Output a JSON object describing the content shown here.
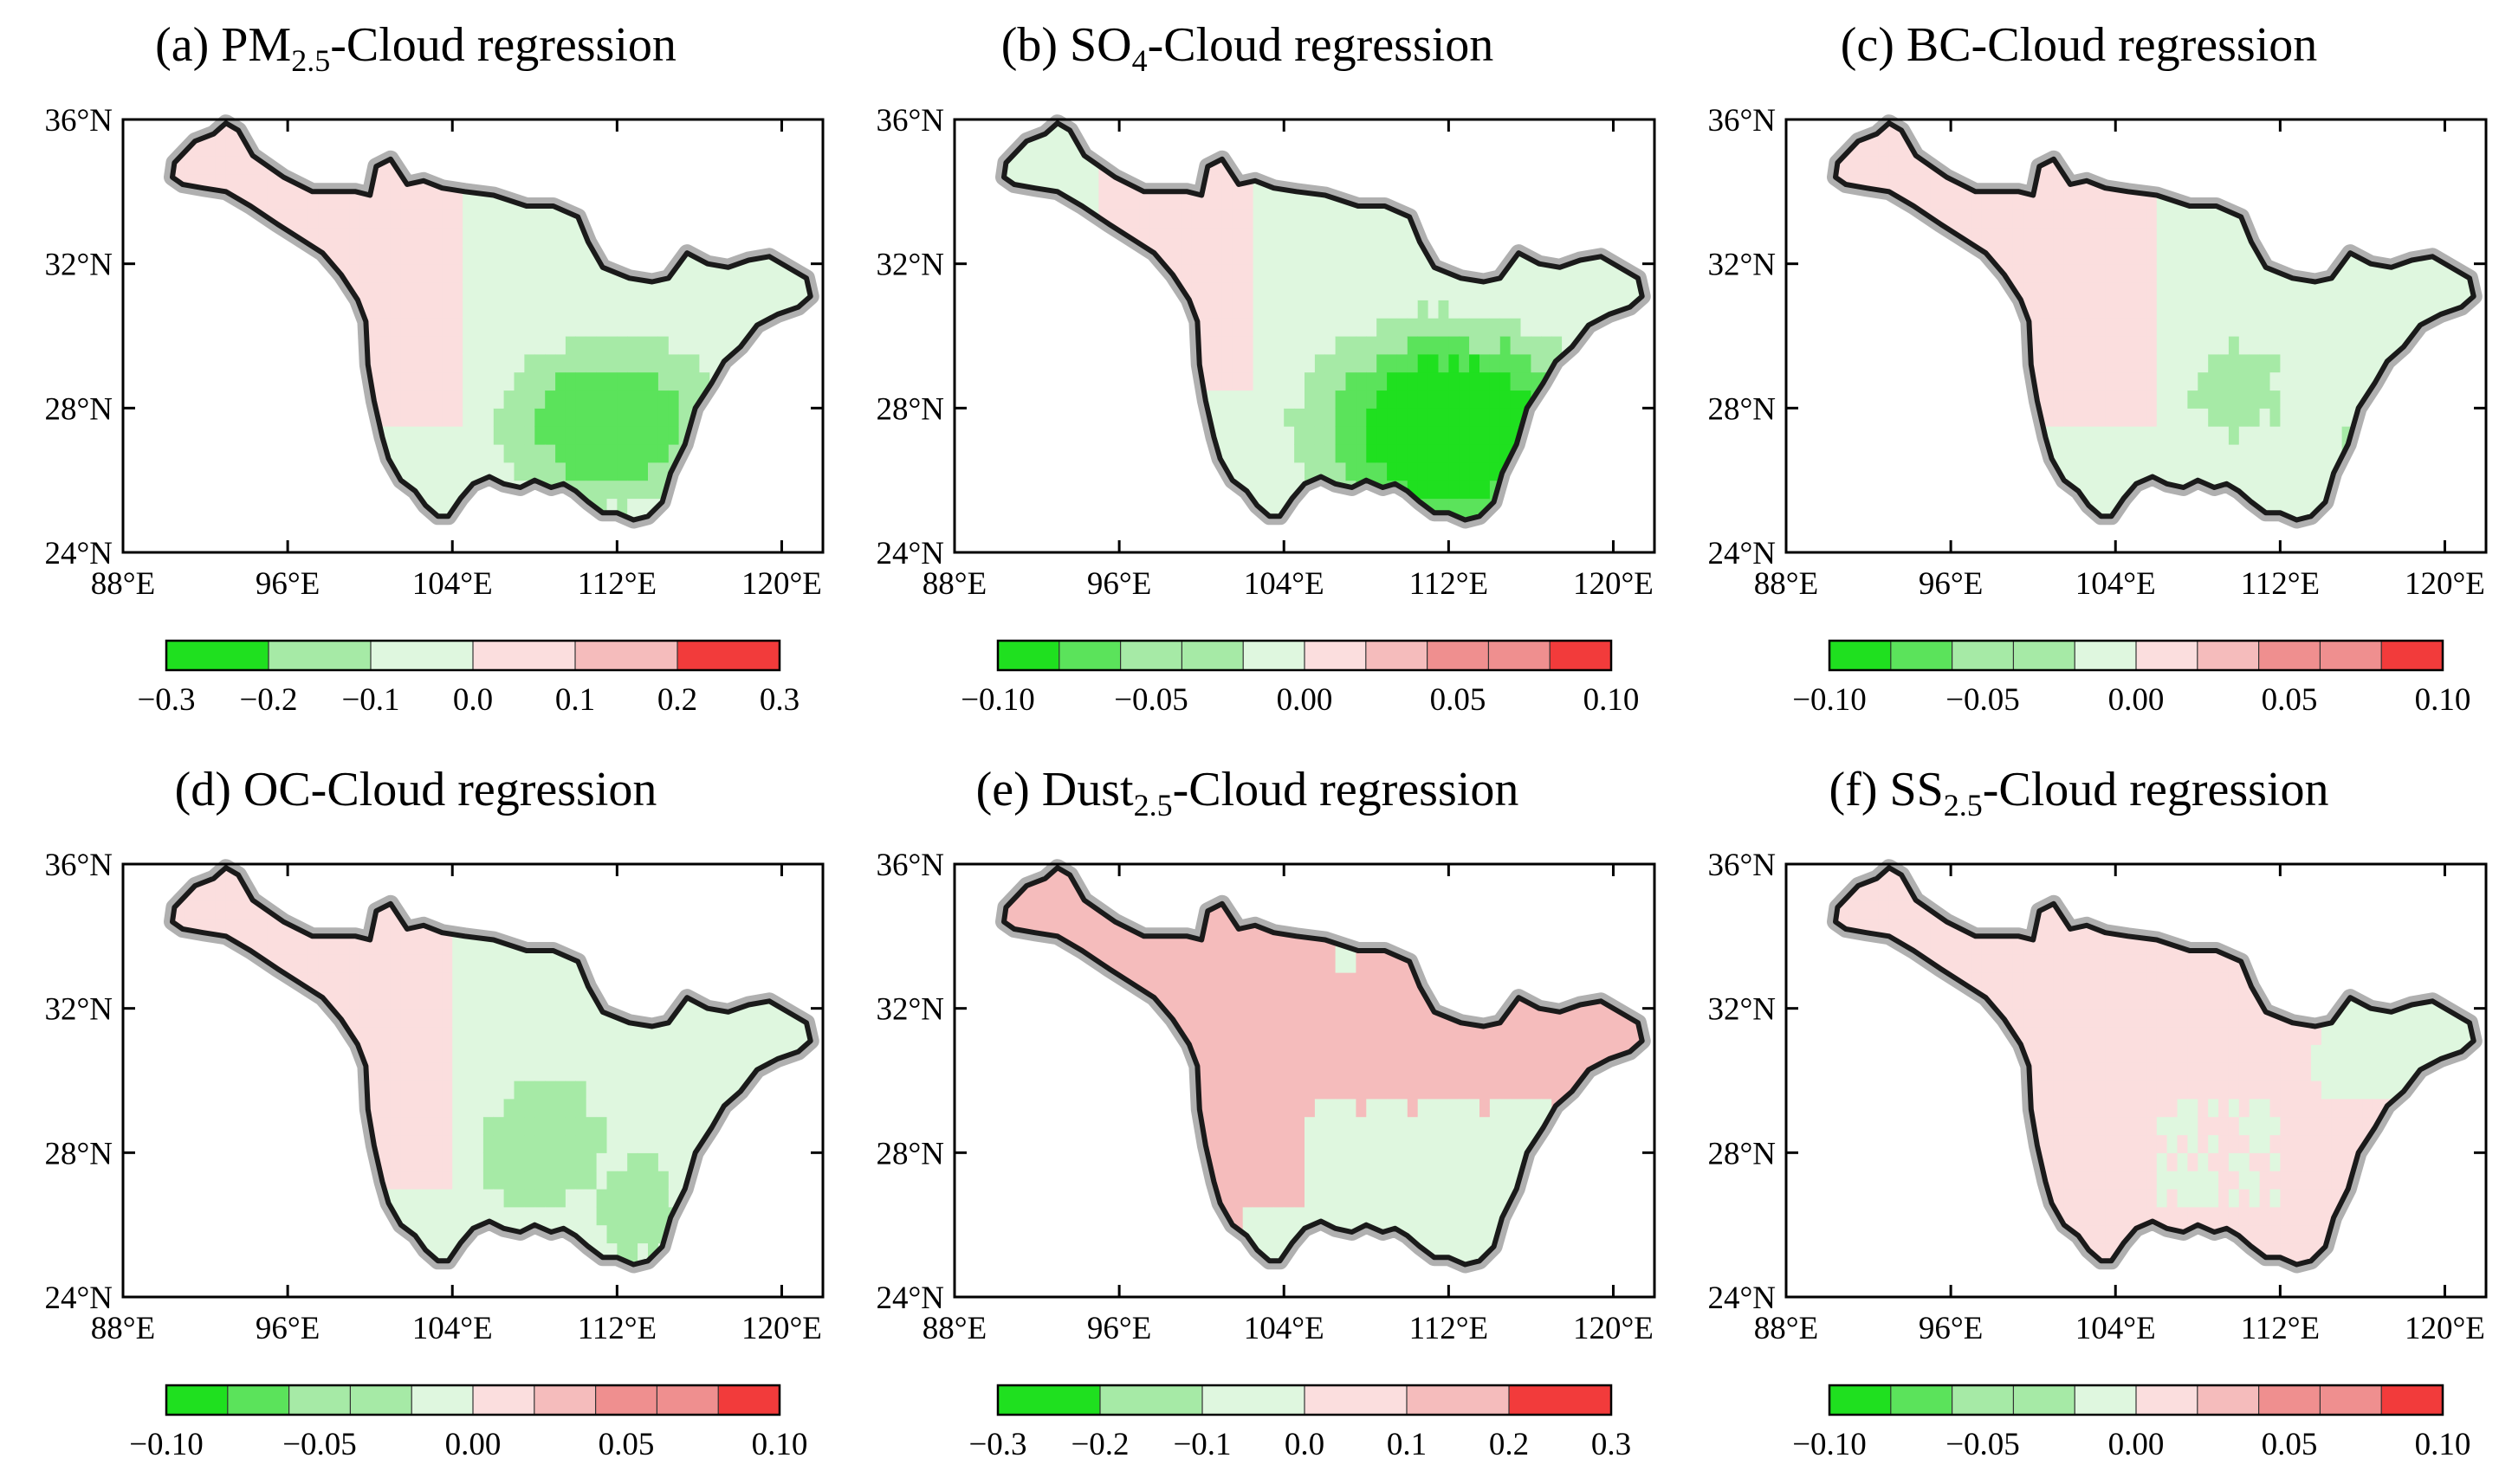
{
  "figure": {
    "panels": [
      {
        "id": "a",
        "title": {
          "prefix": "(a) PM",
          "sub": "2.5",
          "suffix": "-Cloud regression"
        },
        "colorbar": {
          "levels": [
            "-0.3",
            "-0.2",
            "-0.1",
            "0.0",
            "0.1",
            "0.2",
            "0.3"
          ],
          "vmin": -0.3,
          "vmax": 0.3
        },
        "pattern": "pm25"
      },
      {
        "id": "b",
        "title": {
          "prefix": "(b) SO",
          "sub": "4",
          "suffix": "-Cloud regression"
        },
        "colorbar": {
          "levels": [
            "-0.10",
            "-0.05",
            "0.00",
            "0.05",
            "0.10"
          ],
          "vmin": -0.1,
          "vmax": 0.1
        },
        "pattern": "so4"
      },
      {
        "id": "c",
        "title": {
          "prefix": "(c) BC-Cloud regression",
          "sub": "",
          "suffix": ""
        },
        "colorbar": {
          "levels": [
            "-0.10",
            "-0.05",
            "0.00",
            "0.05",
            "0.10"
          ],
          "vmin": -0.1,
          "vmax": 0.1
        },
        "pattern": "bc"
      },
      {
        "id": "d",
        "title": {
          "prefix": "(d) OC-Cloud regression",
          "sub": "",
          "suffix": ""
        },
        "colorbar": {
          "levels": [
            "-0.10",
            "-0.05",
            "0.00",
            "0.05",
            "0.10"
          ],
          "vmin": -0.1,
          "vmax": 0.1
        },
        "pattern": "oc"
      },
      {
        "id": "e",
        "title": {
          "prefix": "(e) Dust",
          "sub": "2.5",
          "suffix": "-Cloud regression"
        },
        "colorbar": {
          "levels": [
            "-0.3",
            "-0.2",
            "-0.1",
            "0.0",
            "0.1",
            "0.2",
            "0.3"
          ],
          "vmin": -0.3,
          "vmax": 0.3
        },
        "pattern": "dust"
      },
      {
        "id": "f",
        "title": {
          "prefix": "(f) SS",
          "sub": "2.5",
          "suffix": "-Cloud regression"
        },
        "colorbar": {
          "levels": [
            "-0.10",
            "-0.05",
            "0.00",
            "0.05",
            "0.10"
          ],
          "vmin": -0.1,
          "vmax": 0.1
        },
        "pattern": "ss"
      }
    ],
    "axes": {
      "lat_labels": [
        "36°N",
        "32°N",
        "28°N",
        "24°N"
      ],
      "lon_labels": [
        "88°E",
        "96°E",
        "104°E",
        "112°E",
        "120°E"
      ],
      "lat_range": [
        24,
        36
      ],
      "lon_range": [
        88,
        122
      ]
    },
    "colors": {
      "neg3": "#1fe01f",
      "neg2": "#5be35b",
      "neg1": "#a6eaa6",
      "neg0": "#dff7df",
      "pos0": "#fbdede",
      "pos1": "#f5bcbc",
      "pos2": "#ef8f8f",
      "pos3": "#f23b3b",
      "boundary": "#1a1a1a",
      "halo": "#b0b0b0"
    }
  }
}
